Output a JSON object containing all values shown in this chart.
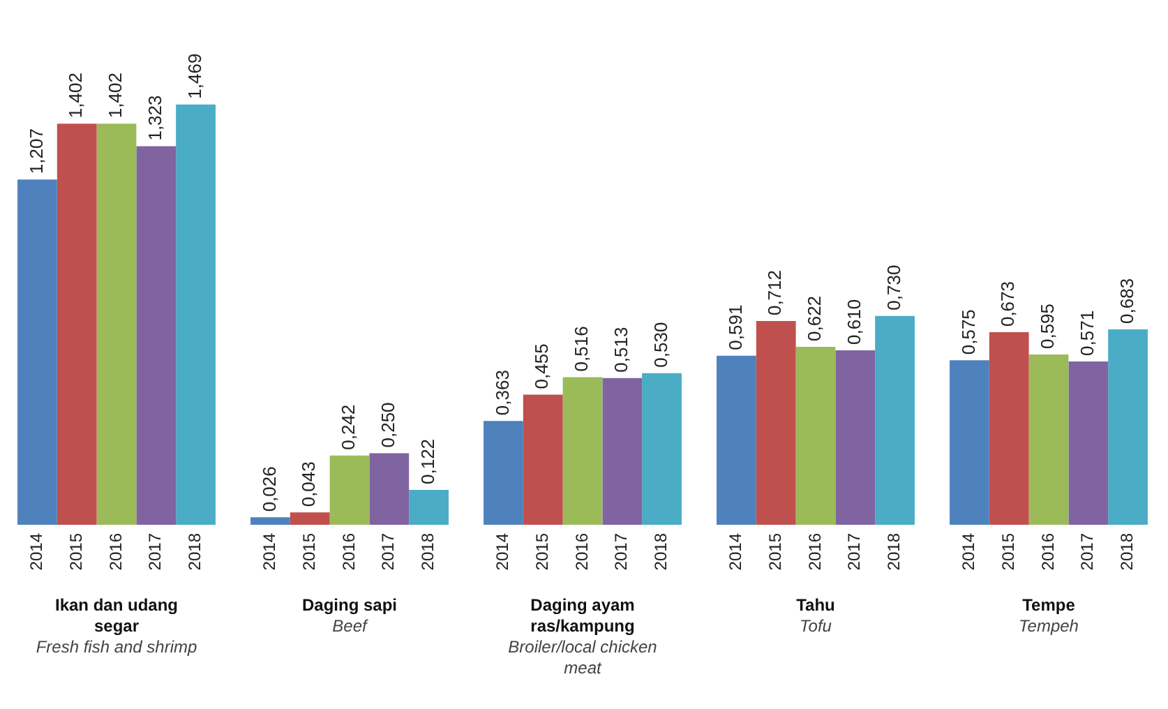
{
  "chart_data": {
    "type": "bar",
    "categories": [
      "Ikan dan udang segar\nFresh fish and shrimp",
      "Daging sapi\nBeef",
      "Daging ayam ras/kampung\nBroiler/local chicken meat",
      "Tahu\nTofu",
      "Tempe\nTempeh"
    ],
    "series": [
      {
        "name": "2014",
        "color": "#4f81bd",
        "values": [
          1.207,
          0.026,
          0.363,
          0.591,
          0.575
        ],
        "value_labels": [
          "1,207",
          "0,026",
          "0,363",
          "0,591",
          "0,575"
        ]
      },
      {
        "name": "2015",
        "color": "#c0504d",
        "values": [
          1.402,
          0.043,
          0.455,
          0.712,
          0.673
        ],
        "value_labels": [
          "1,402",
          "0,043",
          "0,455",
          "0,712",
          "0,673"
        ]
      },
      {
        "name": "2016",
        "color": "#9bbb59",
        "values": [
          1.402,
          0.242,
          0.516,
          0.622,
          0.595
        ],
        "value_labels": [
          "1,402",
          "0,242",
          "0,516",
          "0,622",
          "0,595"
        ]
      },
      {
        "name": "2017",
        "color": "#8064a2",
        "values": [
          1.323,
          0.25,
          0.513,
          0.61,
          0.571
        ],
        "value_labels": [
          "1,323",
          "0,250",
          "0,513",
          "0,610",
          "0,571"
        ]
      },
      {
        "name": "2018",
        "color": "#4bacc6",
        "values": [
          1.469,
          0.122,
          0.53,
          0.73,
          0.683
        ],
        "value_labels": [
          "1,469",
          "0,122",
          "0,530",
          "0,730",
          "0,683"
        ]
      }
    ],
    "tick_labels": "x"
  }
}
